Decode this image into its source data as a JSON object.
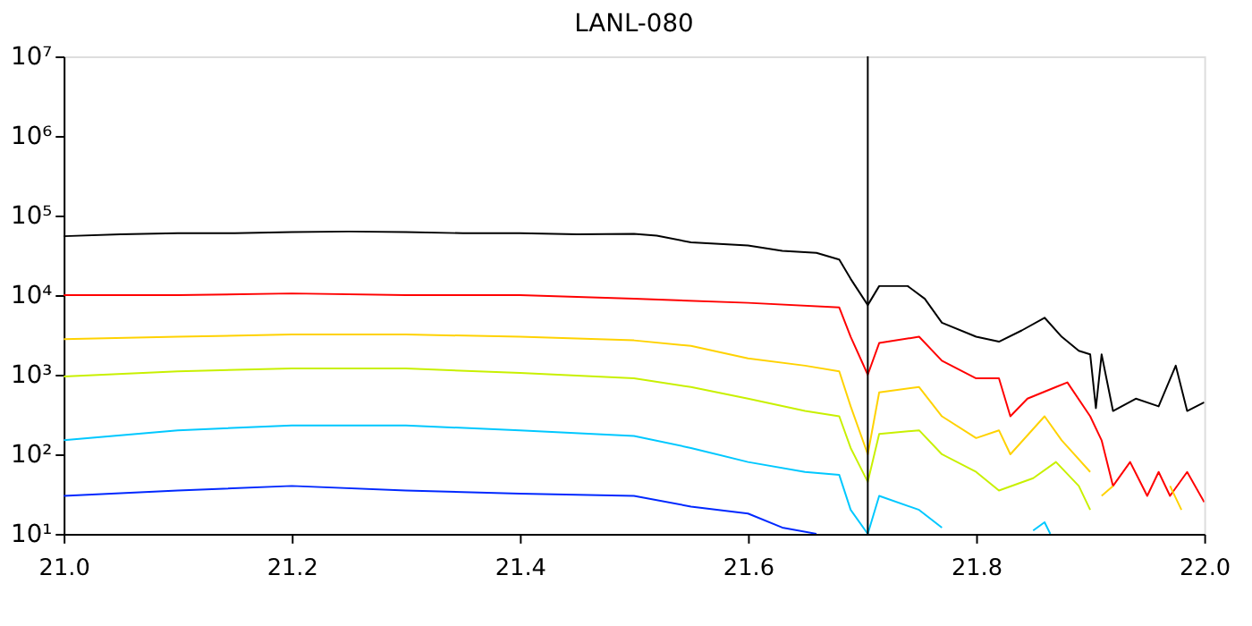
{
  "chart_data": {
    "type": "line",
    "title": "LANL-080",
    "log": "y",
    "grid": false,
    "xlim": [
      21.0,
      22.0
    ],
    "ylim": [
      10,
      10000000
    ],
    "xticks": [
      {
        "value": 21.0,
        "label": "21.0"
      },
      {
        "value": 21.2,
        "label": "21.2"
      },
      {
        "value": 21.4,
        "label": "21.4"
      },
      {
        "value": 21.6,
        "label": "21.6"
      },
      {
        "value": 21.8,
        "label": "21.8"
      },
      {
        "value": 22.0,
        "label": "22.0"
      }
    ],
    "yticks": [
      {
        "value": 10,
        "label": "10¹"
      },
      {
        "value": 100,
        "label": "10²"
      },
      {
        "value": 1000,
        "label": "10³"
      },
      {
        "value": 10000,
        "label": "10⁴"
      },
      {
        "value": 100000,
        "label": "10⁵"
      },
      {
        "value": 1000000,
        "label": "10⁶"
      },
      {
        "value": 10000000,
        "label": "10⁷"
      }
    ],
    "ref_lines": [
      {
        "axis": "x",
        "value": 21.705,
        "color": "#000000"
      }
    ],
    "series": [
      {
        "color": "#000000",
        "x": [
          21.0,
          21.05,
          21.1,
          21.15,
          21.2,
          21.25,
          21.3,
          21.35,
          21.4,
          21.45,
          21.5,
          21.52,
          21.55,
          21.6,
          21.63,
          21.66,
          21.68,
          21.69,
          21.705,
          21.715,
          21.74,
          21.755,
          21.77,
          21.8,
          21.82,
          21.84,
          21.86,
          21.875,
          21.89,
          21.9,
          21.905,
          21.91,
          21.92,
          21.94,
          21.96,
          21.975,
          21.985,
          22.0
        ],
        "values": [
          55000,
          58000,
          60000,
          60000,
          62000,
          63000,
          62000,
          60000,
          60000,
          58000,
          59000,
          56000,
          46000,
          42000,
          36000,
          34000,
          28000,
          16000,
          7500,
          13000,
          13000,
          9000,
          4500,
          3000,
          2600,
          3600,
          5200,
          3000,
          2000,
          1800,
          380,
          1800,
          350,
          500,
          400,
          1300,
          350,
          450
        ]
      },
      {
        "color": "#ff0000",
        "x": [
          21.0,
          21.1,
          21.2,
          21.3,
          21.4,
          21.45,
          21.5,
          21.6,
          21.68,
          21.69,
          21.705,
          21.715,
          21.75,
          21.77,
          21.8,
          21.82,
          21.83,
          21.845,
          21.87,
          21.88,
          21.9,
          21.91,
          21.92,
          21.935,
          21.95,
          21.96,
          21.97,
          21.985,
          22.0
        ],
        "values": [
          10000,
          10000,
          10500,
          10000,
          10000,
          9500,
          9000,
          8000,
          7000,
          3000,
          1000,
          2500,
          3000,
          1500,
          900,
          900,
          300,
          500,
          700,
          800,
          300,
          150,
          40,
          80,
          30,
          60,
          30,
          60,
          25
        ]
      },
      {
        "color": "#ffd200",
        "x": [
          21.0,
          21.1,
          21.2,
          21.3,
          21.4,
          21.5,
          21.55,
          21.6,
          21.65,
          21.68,
          21.69,
          21.705,
          21.715,
          21.75,
          21.77,
          21.8,
          21.82,
          21.83,
          21.86,
          21.875,
          21.9,
          21.905,
          21.91,
          21.92,
          21.93,
          21.97,
          21.98
        ],
        "values": [
          2800,
          3000,
          3200,
          3200,
          3000,
          2700,
          2300,
          1600,
          1300,
          1100,
          400,
          100,
          600,
          700,
          300,
          160,
          200,
          100,
          300,
          150,
          60,
          null,
          30,
          40,
          null,
          40,
          20
        ]
      },
      {
        "color": "#c8f000",
        "x": [
          21.0,
          21.1,
          21.2,
          21.3,
          21.4,
          21.5,
          21.55,
          21.6,
          21.65,
          21.68,
          21.69,
          21.705,
          21.715,
          21.75,
          21.77,
          21.8,
          21.82,
          21.85,
          21.87,
          21.89,
          21.9
        ],
        "values": [
          950,
          1100,
          1200,
          1200,
          1050,
          900,
          700,
          500,
          350,
          300,
          120,
          45,
          180,
          200,
          100,
          60,
          35,
          50,
          80,
          40,
          20
        ]
      },
      {
        "color": "#00c8ff",
        "x": [
          21.0,
          21.1,
          21.2,
          21.3,
          21.4,
          21.5,
          21.55,
          21.6,
          21.65,
          21.68,
          21.69,
          21.705,
          21.715,
          21.75,
          21.77,
          21.78,
          21.85,
          21.86,
          21.865
        ],
        "values": [
          150,
          200,
          230,
          230,
          200,
          170,
          120,
          80,
          60,
          55,
          20,
          10,
          30,
          20,
          12,
          null,
          11,
          14,
          10
        ]
      },
      {
        "color": "#0028ff",
        "x": [
          21.0,
          21.1,
          21.2,
          21.3,
          21.4,
          21.5,
          21.55,
          21.6,
          21.63,
          21.66
        ],
        "values": [
          30,
          35,
          40,
          35,
          32,
          30,
          22,
          18,
          12,
          10
        ]
      }
    ]
  }
}
